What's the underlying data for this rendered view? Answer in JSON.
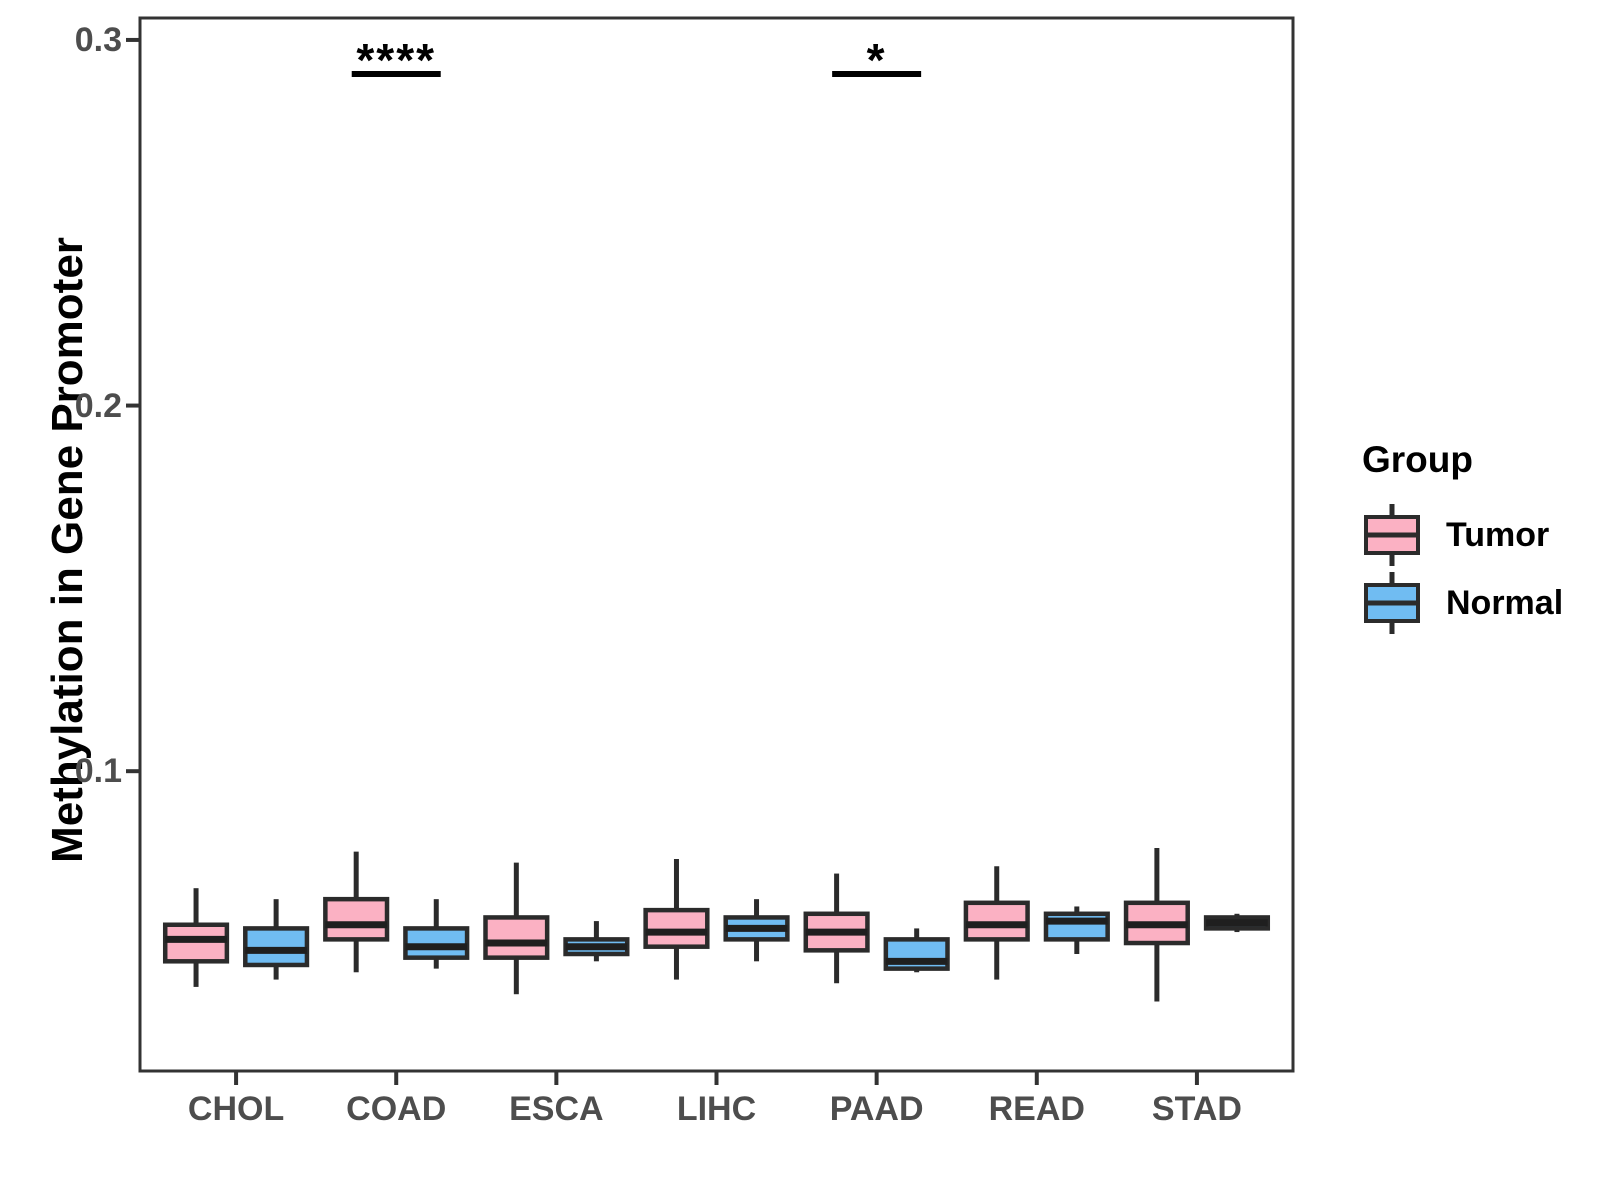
{
  "figure": {
    "y_axis_title": "Methylation in Gene Promoter"
  },
  "axis": {
    "y_ticks": [
      {
        "label": "0.1",
        "value": 0.1
      },
      {
        "label": "0.2",
        "value": 0.2
      },
      {
        "label": "0.3",
        "value": 0.3
      }
    ]
  },
  "legend": {
    "title": "Group",
    "items": [
      {
        "label": "Tumor",
        "color": "#FBB1C3"
      },
      {
        "label": "Normal",
        "color": "#70BCF2"
      }
    ]
  },
  "annotations": [
    {
      "category": "COAD",
      "label": "****"
    },
    {
      "category": "PAAD",
      "label": "*"
    }
  ],
  "colors": {
    "tumor_fill": "#FBB1C3",
    "normal_fill": "#70BCF2",
    "box_outline": "#2B2B2B",
    "median_line": "#1F1F1F",
    "panel_border": "#333333",
    "axis_text": "#4d4d4d",
    "annotation": "#000000"
  },
  "chart_data": {
    "type": "boxplot",
    "title": "",
    "xlabel": "",
    "ylabel": "Methylation in Gene Promoter",
    "ylim": [
      0.018,
      0.306
    ],
    "y_tick_values": [
      0.1,
      0.2,
      0.3
    ],
    "grid": false,
    "legend_position": "right",
    "categories": [
      "CHOL",
      "COAD",
      "ESCA",
      "LIHC",
      "PAAD",
      "READ",
      "STAD"
    ],
    "series": [
      {
        "name": "Tumor",
        "color": "#FBB1C3",
        "boxes": [
          {
            "whisker_low": 0.041,
            "q1": 0.048,
            "median": 0.054,
            "q3": 0.058,
            "whisker_high": 0.068
          },
          {
            "whisker_low": 0.045,
            "q1": 0.054,
            "median": 0.058,
            "q3": 0.065,
            "whisker_high": 0.078
          },
          {
            "whisker_low": 0.039,
            "q1": 0.049,
            "median": 0.053,
            "q3": 0.06,
            "whisker_high": 0.075
          },
          {
            "whisker_low": 0.043,
            "q1": 0.052,
            "median": 0.056,
            "q3": 0.062,
            "whisker_high": 0.076
          },
          {
            "whisker_low": 0.042,
            "q1": 0.051,
            "median": 0.056,
            "q3": 0.061,
            "whisker_high": 0.072
          },
          {
            "whisker_low": 0.043,
            "q1": 0.054,
            "median": 0.058,
            "q3": 0.064,
            "whisker_high": 0.074
          },
          {
            "whisker_low": 0.037,
            "q1": 0.053,
            "median": 0.058,
            "q3": 0.064,
            "whisker_high": 0.079
          }
        ]
      },
      {
        "name": "Normal",
        "color": "#70BCF2",
        "boxes": [
          {
            "whisker_low": 0.043,
            "q1": 0.047,
            "median": 0.051,
            "q3": 0.057,
            "whisker_high": 0.065
          },
          {
            "whisker_low": 0.046,
            "q1": 0.049,
            "median": 0.052,
            "q3": 0.057,
            "whisker_high": 0.065
          },
          {
            "whisker_low": 0.048,
            "q1": 0.05,
            "median": 0.052,
            "q3": 0.054,
            "whisker_high": 0.059
          },
          {
            "whisker_low": 0.048,
            "q1": 0.054,
            "median": 0.057,
            "q3": 0.06,
            "whisker_high": 0.065
          },
          {
            "whisker_low": 0.045,
            "q1": 0.046,
            "median": 0.048,
            "q3": 0.054,
            "whisker_high": 0.057
          },
          {
            "whisker_low": 0.05,
            "q1": 0.054,
            "median": 0.059,
            "q3": 0.061,
            "whisker_high": 0.063
          },
          {
            "whisker_low": 0.056,
            "q1": 0.057,
            "median": 0.0585,
            "q3": 0.06,
            "whisker_high": 0.061
          }
        ]
      }
    ]
  }
}
